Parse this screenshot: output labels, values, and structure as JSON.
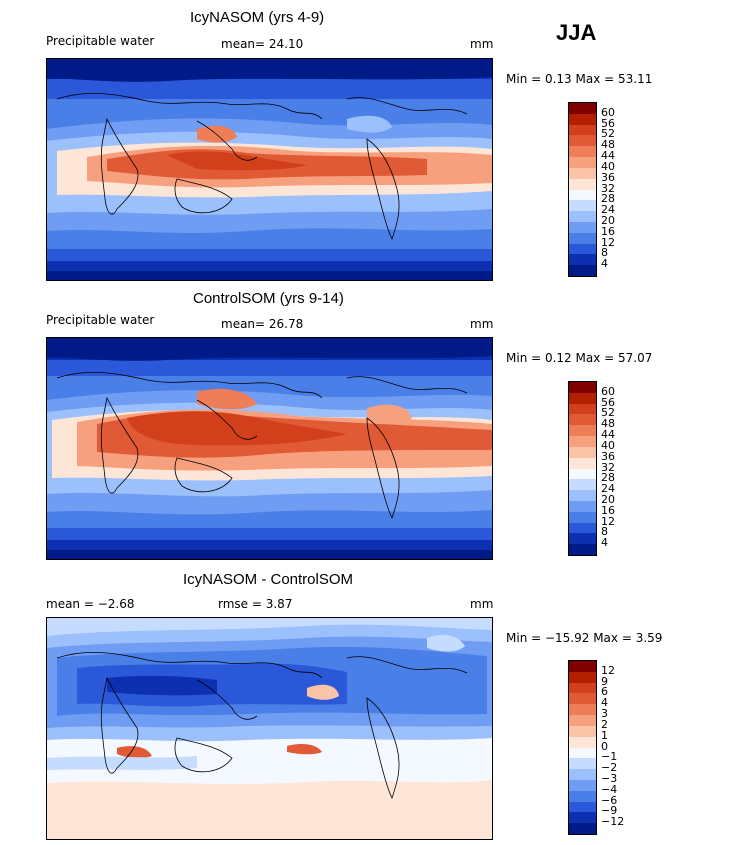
{
  "season": "JJA",
  "panels": [
    {
      "title": "IcyNASOM (yrs 4-9)",
      "left_label": "Precipitable water",
      "mid_label": "mean=   24.10",
      "units": "mm",
      "minmax": "Min =    0.13 Max =  53.11"
    },
    {
      "title": "ControlSOM (yrs 9-14)",
      "left_label": "Precipitable water",
      "mid_label": "mean=   26.78",
      "units": "mm",
      "minmax": "Min =    0.12 Max =  57.07"
    },
    {
      "title": "IcyNASOM - ControlSOM",
      "left_label": "mean =   −2.68",
      "mid_label": "rmse =    3.87",
      "units": "mm",
      "minmax": "Min = −15.92 Max =    3.59"
    }
  ],
  "colorbar_abs": {
    "labels": [
      "60",
      "56",
      "52",
      "48",
      "44",
      "40",
      "36",
      "32",
      "28",
      "24",
      "20",
      "16",
      "12",
      "8",
      "4"
    ],
    "colors": [
      "#800000",
      "#b32000",
      "#d1401a",
      "#e05a36",
      "#ee7e58",
      "#f6a07e",
      "#fac4a8",
      "#fde6d8",
      "#f4f8ff",
      "#c6dcff",
      "#9cc0fb",
      "#709df4",
      "#4a7fe8",
      "#2a58d8",
      "#0c30b0",
      "#001a88"
    ]
  },
  "colorbar_diff": {
    "labels": [
      "12",
      "9",
      "6",
      "4",
      "3",
      "2",
      "1",
      "0",
      "−1",
      "−2",
      "−3",
      "−4",
      "−6",
      "−9",
      "−12"
    ],
    "colors": [
      "#800000",
      "#b32000",
      "#d1401a",
      "#e05a36",
      "#ee7e58",
      "#f6a07e",
      "#fac4a8",
      "#fde6d8",
      "#f4f8ff",
      "#c6dcff",
      "#9cc0fb",
      "#709df4",
      "#4a7fe8",
      "#2a58d8",
      "#0c30b0",
      "#001a88"
    ]
  }
}
